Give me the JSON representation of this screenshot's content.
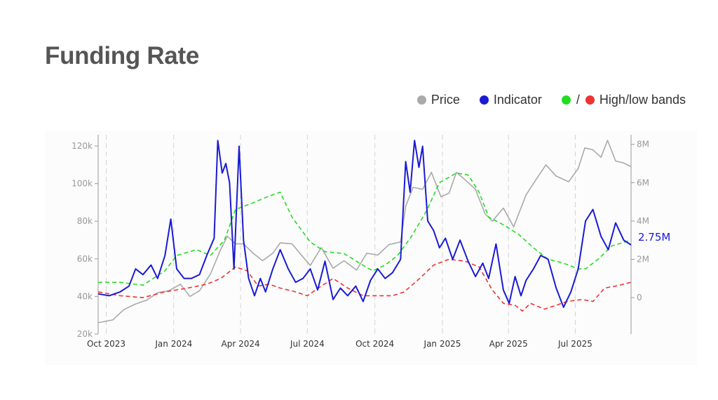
{
  "page": {
    "title": "Funding Rate"
  },
  "legend": {
    "price": {
      "label": "Price",
      "color": "#aaaaaa"
    },
    "indicator": {
      "label": "Indicator",
      "color": "#1a1ad6"
    },
    "bands": {
      "label": "High/low bands",
      "high_color": "#22dd22",
      "low_color": "#ee3333",
      "separator": "/"
    }
  },
  "chart_data": {
    "type": "line",
    "x_ticks": [
      "Oct 2023",
      "Jan 2024",
      "Apr 2024",
      "Jul 2024",
      "Oct 2024",
      "Jan 2025",
      "Apr 2025",
      "Jul 2025"
    ],
    "x_tick_dates": [
      "2023-10-01",
      "2024-01-01",
      "2024-04-01",
      "2024-07-01",
      "2024-10-01",
      "2025-01-01",
      "2025-04-01",
      "2025-07-01"
    ],
    "x_range": [
      "2023-09-20",
      "2025-09-15"
    ],
    "y_left": {
      "ticks": [
        "120k",
        "100k",
        "80k",
        "60k",
        "40k",
        "20k"
      ],
      "tick_values": [
        120000,
        100000,
        80000,
        60000,
        40000,
        20000
      ],
      "range": [
        20000,
        126000
      ]
    },
    "y_right": {
      "ticks": [
        "8M",
        "6M",
        "4M",
        "2M",
        "0"
      ],
      "tick_values": [
        8000000,
        6000000,
        4000000,
        2000000,
        0
      ],
      "range": [
        -1900000,
        8500000
      ]
    },
    "vertical_grid": "dashed",
    "last_value_label": "2.75M",
    "series": [
      {
        "name": "Price",
        "axis": "left",
        "color": "#aaaaaa",
        "dash": "solid",
        "points": [
          [
            "2023-09-20",
            26000
          ],
          [
            "2023-10-10",
            27500
          ],
          [
            "2023-10-25",
            33000
          ],
          [
            "2023-11-10",
            36000
          ],
          [
            "2023-11-25",
            38000
          ],
          [
            "2023-12-10",
            42000
          ],
          [
            "2023-12-25",
            43000
          ],
          [
            "2024-01-10",
            46500
          ],
          [
            "2024-01-23",
            40000
          ],
          [
            "2024-02-05",
            43000
          ],
          [
            "2024-02-20",
            52000
          ],
          [
            "2024-03-05",
            65000
          ],
          [
            "2024-03-14",
            72000
          ],
          [
            "2024-03-25",
            68000
          ],
          [
            "2024-04-05",
            68000
          ],
          [
            "2024-04-18",
            63000
          ],
          [
            "2024-05-01",
            59000
          ],
          [
            "2024-05-15",
            63000
          ],
          [
            "2024-05-25",
            68500
          ],
          [
            "2024-06-10",
            68000
          ],
          [
            "2024-06-25",
            61000
          ],
          [
            "2024-07-05",
            56500
          ],
          [
            "2024-07-20",
            66000
          ],
          [
            "2024-08-05",
            55000
          ],
          [
            "2024-08-20",
            59000
          ],
          [
            "2024-09-06",
            54000
          ],
          [
            "2024-09-20",
            63000
          ],
          [
            "2024-10-05",
            62000
          ],
          [
            "2024-10-20",
            67500
          ],
          [
            "2024-11-05",
            69000
          ],
          [
            "2024-11-12",
            88000
          ],
          [
            "2024-11-22",
            98000
          ],
          [
            "2024-12-05",
            97000
          ],
          [
            "2024-12-17",
            106000
          ],
          [
            "2024-12-30",
            93000
          ],
          [
            "2025-01-10",
            95000
          ],
          [
            "2025-01-20",
            106000
          ],
          [
            "2025-02-01",
            102000
          ],
          [
            "2025-02-15",
            97000
          ],
          [
            "2025-02-28",
            84000
          ],
          [
            "2025-03-10",
            80000
          ],
          [
            "2025-03-25",
            87000
          ],
          [
            "2025-04-08",
            77000
          ],
          [
            "2025-04-25",
            94000
          ],
          [
            "2025-05-10",
            103000
          ],
          [
            "2025-05-22",
            110000
          ],
          [
            "2025-06-05",
            104000
          ],
          [
            "2025-06-22",
            101000
          ],
          [
            "2025-07-05",
            108000
          ],
          [
            "2025-07-14",
            119000
          ],
          [
            "2025-07-25",
            118000
          ],
          [
            "2025-08-05",
            114000
          ],
          [
            "2025-08-14",
            123000
          ],
          [
            "2025-08-25",
            112000
          ],
          [
            "2025-09-05",
            111000
          ],
          [
            "2025-09-15",
            109000
          ]
        ]
      },
      {
        "name": "Indicator",
        "axis": "right",
        "color": "#1a1ad6",
        "dash": "solid",
        "points": [
          [
            "2023-09-20",
            0.2
          ],
          [
            "2023-10-05",
            0.1
          ],
          [
            "2023-10-20",
            0.3
          ],
          [
            "2023-11-01",
            0.6
          ],
          [
            "2023-11-10",
            1.5
          ],
          [
            "2023-11-20",
            1.2
          ],
          [
            "2023-12-01",
            1.7
          ],
          [
            "2023-12-10",
            1.0
          ],
          [
            "2023-12-20",
            2.2
          ],
          [
            "2023-12-28",
            4.1
          ],
          [
            "2024-01-05",
            1.5
          ],
          [
            "2024-01-15",
            1.0
          ],
          [
            "2024-01-25",
            1.0
          ],
          [
            "2024-02-05",
            1.2
          ],
          [
            "2024-02-15",
            2.2
          ],
          [
            "2024-02-25",
            3.1
          ],
          [
            "2024-03-01",
            8.2
          ],
          [
            "2024-03-07",
            6.5
          ],
          [
            "2024-03-12",
            7.0
          ],
          [
            "2024-03-17",
            6.0
          ],
          [
            "2024-03-23",
            1.5
          ],
          [
            "2024-03-30",
            7.9
          ],
          [
            "2024-04-05",
            3.0
          ],
          [
            "2024-04-12",
            1.0
          ],
          [
            "2024-04-20",
            0.1
          ],
          [
            "2024-04-28",
            1.0
          ],
          [
            "2024-05-05",
            0.3
          ],
          [
            "2024-05-15",
            1.5
          ],
          [
            "2024-05-25",
            2.5
          ],
          [
            "2024-06-05",
            1.5
          ],
          [
            "2024-06-15",
            0.8
          ],
          [
            "2024-06-25",
            1.0
          ],
          [
            "2024-07-05",
            1.5
          ],
          [
            "2024-07-15",
            0.4
          ],
          [
            "2024-07-25",
            1.9
          ],
          [
            "2024-08-05",
            -0.1
          ],
          [
            "2024-08-15",
            0.5
          ],
          [
            "2024-08-25",
            0.1
          ],
          [
            "2024-09-05",
            0.6
          ],
          [
            "2024-09-15",
            -0.2
          ],
          [
            "2024-09-25",
            0.9
          ],
          [
            "2024-10-05",
            1.5
          ],
          [
            "2024-10-15",
            1.0
          ],
          [
            "2024-10-25",
            1.3
          ],
          [
            "2024-11-05",
            2.0
          ],
          [
            "2024-11-12",
            7.1
          ],
          [
            "2024-11-18",
            5.5
          ],
          [
            "2024-11-24",
            8.2
          ],
          [
            "2024-11-30",
            6.8
          ],
          [
            "2024-12-05",
            7.9
          ],
          [
            "2024-12-12",
            4.0
          ],
          [
            "2024-12-20",
            3.5
          ],
          [
            "2024-12-28",
            2.6
          ],
          [
            "2025-01-05",
            3.1
          ],
          [
            "2025-01-15",
            2.0
          ],
          [
            "2025-01-25",
            3.0
          ],
          [
            "2025-02-05",
            1.9
          ],
          [
            "2025-02-15",
            1.1
          ],
          [
            "2025-02-25",
            1.8
          ],
          [
            "2025-03-05",
            1.0
          ],
          [
            "2025-03-15",
            2.8
          ],
          [
            "2025-03-25",
            0.4
          ],
          [
            "2025-04-02",
            -0.3
          ],
          [
            "2025-04-10",
            1.1
          ],
          [
            "2025-04-18",
            0.1
          ],
          [
            "2025-04-25",
            0.9
          ],
          [
            "2025-05-05",
            1.5
          ],
          [
            "2025-05-15",
            2.2
          ],
          [
            "2025-05-25",
            2.0
          ],
          [
            "2025-06-05",
            0.5
          ],
          [
            "2025-06-15",
            -0.5
          ],
          [
            "2025-06-25",
            0.3
          ],
          [
            "2025-07-05",
            1.5
          ],
          [
            "2025-07-15",
            4.0
          ],
          [
            "2025-07-25",
            4.6
          ],
          [
            "2025-08-05",
            3.2
          ],
          [
            "2025-08-15",
            2.5
          ],
          [
            "2025-08-25",
            3.9
          ],
          [
            "2025-09-05",
            3.0
          ],
          [
            "2025-09-15",
            2.75
          ]
        ]
      },
      {
        "name": "High band",
        "axis": "right",
        "color": "#22dd22",
        "dash": "dashed",
        "points": [
          [
            "2023-09-20",
            0.8
          ],
          [
            "2023-10-20",
            0.8
          ],
          [
            "2023-11-20",
            0.65
          ],
          [
            "2023-12-20",
            1.4
          ],
          [
            "2024-01-05",
            2.2
          ],
          [
            "2024-02-01",
            2.5
          ],
          [
            "2024-02-20",
            2.2
          ],
          [
            "2024-03-10",
            3.0
          ],
          [
            "2024-03-25",
            4.6
          ],
          [
            "2024-04-15",
            4.9
          ],
          [
            "2024-05-10",
            5.3
          ],
          [
            "2024-05-25",
            5.5
          ],
          [
            "2024-06-10",
            4.2
          ],
          [
            "2024-07-05",
            2.9
          ],
          [
            "2024-07-25",
            2.4
          ],
          [
            "2024-08-20",
            2.3
          ],
          [
            "2024-09-10",
            1.8
          ],
          [
            "2024-09-28",
            1.4
          ],
          [
            "2024-10-15",
            1.7
          ],
          [
            "2024-11-01",
            2.2
          ],
          [
            "2024-11-20",
            3.2
          ],
          [
            "2024-12-10",
            4.5
          ],
          [
            "2024-12-28",
            6.0
          ],
          [
            "2025-01-20",
            6.5
          ],
          [
            "2025-02-05",
            6.4
          ],
          [
            "2025-02-20",
            5.5
          ],
          [
            "2025-03-05",
            4.2
          ],
          [
            "2025-03-25",
            3.8
          ],
          [
            "2025-04-15",
            3.3
          ],
          [
            "2025-05-05",
            2.6
          ],
          [
            "2025-05-25",
            2.0
          ],
          [
            "2025-06-15",
            1.8
          ],
          [
            "2025-07-05",
            1.5
          ],
          [
            "2025-07-15",
            1.5
          ],
          [
            "2025-08-01",
            2.0
          ],
          [
            "2025-08-20",
            2.7
          ],
          [
            "2025-09-15",
            3.0
          ]
        ]
      },
      {
        "name": "Low band",
        "axis": "right",
        "color": "#ee3333",
        "dash": "dashed",
        "points": [
          [
            "2023-09-20",
            0.3
          ],
          [
            "2023-10-20",
            0.1
          ],
          [
            "2023-11-20",
            0.0
          ],
          [
            "2023-12-20",
            0.3
          ],
          [
            "2024-01-20",
            0.5
          ],
          [
            "2024-02-15",
            0.7
          ],
          [
            "2024-03-05",
            1.0
          ],
          [
            "2024-03-25",
            1.6
          ],
          [
            "2024-04-10",
            1.4
          ],
          [
            "2024-04-25",
            0.6
          ],
          [
            "2024-05-10",
            0.7
          ],
          [
            "2024-05-25",
            0.5
          ],
          [
            "2024-06-15",
            0.3
          ],
          [
            "2024-07-01",
            0.1
          ],
          [
            "2024-07-20",
            0.6
          ],
          [
            "2024-08-05",
            1.0
          ],
          [
            "2024-08-25",
            0.5
          ],
          [
            "2024-09-15",
            0.1
          ],
          [
            "2024-10-05",
            0.1
          ],
          [
            "2024-10-25",
            0.1
          ],
          [
            "2024-11-10",
            0.3
          ],
          [
            "2024-12-01",
            1.0
          ],
          [
            "2024-12-20",
            1.7
          ],
          [
            "2025-01-10",
            2.0
          ],
          [
            "2025-02-01",
            1.9
          ],
          [
            "2025-02-20",
            1.6
          ],
          [
            "2025-03-10",
            0.4
          ],
          [
            "2025-03-25",
            -0.3
          ],
          [
            "2025-04-10",
            -0.4
          ],
          [
            "2025-04-20",
            -0.7
          ],
          [
            "2025-05-01",
            -0.3
          ],
          [
            "2025-05-20",
            -0.6
          ],
          [
            "2025-06-05",
            -0.4
          ],
          [
            "2025-06-20",
            -0.2
          ],
          [
            "2025-07-10",
            -0.1
          ],
          [
            "2025-07-25",
            -0.2
          ],
          [
            "2025-08-10",
            0.5
          ],
          [
            "2025-08-25",
            0.6
          ],
          [
            "2025-09-15",
            0.8
          ]
        ]
      }
    ]
  }
}
